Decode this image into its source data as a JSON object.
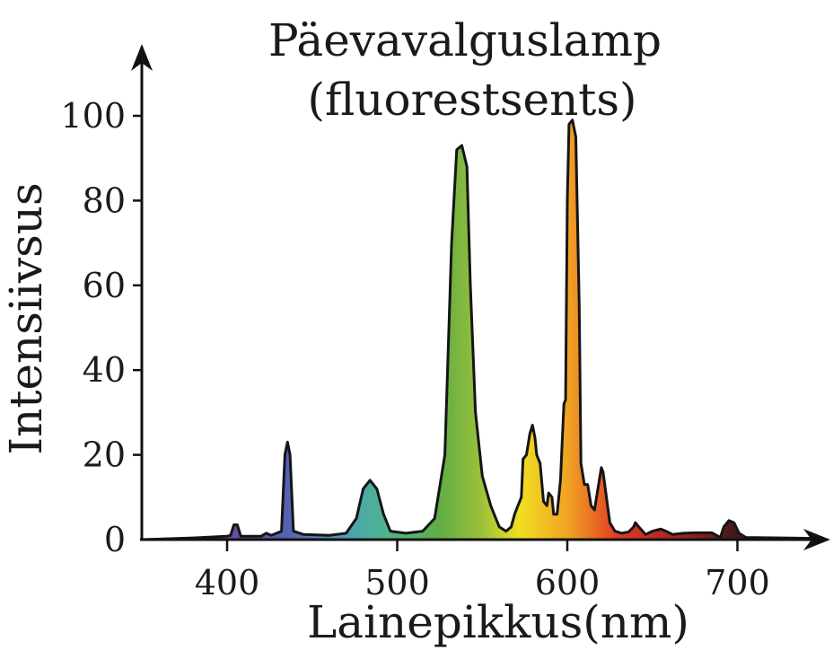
{
  "chart_data": {
    "type": "area",
    "title": [
      "Päevavalguslamp",
      "(fluorestsents)"
    ],
    "xlabel": "Lainepikkus(nm)",
    "ylabel": "Intensiivsus",
    "xlim": [
      350,
      752
    ],
    "ylim": [
      0,
      110
    ],
    "x_ticks": [
      400,
      500,
      600,
      700
    ],
    "y_ticks": [
      0,
      20,
      40,
      60,
      80,
      100
    ],
    "grid": false,
    "legend": "none",
    "fill": "visible-spectrum gradient",
    "spectrum_colors": [
      {
        "nm": 400,
        "color": "#6a4a9c"
      },
      {
        "nm": 435,
        "color": "#5660b2"
      },
      {
        "nm": 470,
        "color": "#4aa2b4"
      },
      {
        "nm": 495,
        "color": "#4fb68a"
      },
      {
        "nm": 525,
        "color": "#62ac44"
      },
      {
        "nm": 550,
        "color": "#9cc23a"
      },
      {
        "nm": 572,
        "color": "#f0df22"
      },
      {
        "nm": 600,
        "color": "#f0a424"
      },
      {
        "nm": 630,
        "color": "#e23a22"
      },
      {
        "nm": 665,
        "color": "#a82222"
      },
      {
        "nm": 700,
        "color": "#3c1a1a"
      }
    ],
    "points": [
      [
        350,
        0
      ],
      [
        380,
        0.4
      ],
      [
        400,
        0.8
      ],
      [
        402,
        1
      ],
      [
        404,
        3.5
      ],
      [
        406,
        3.5
      ],
      [
        408,
        0.8
      ],
      [
        420,
        0.8
      ],
      [
        423,
        1.5
      ],
      [
        426,
        1
      ],
      [
        432,
        2
      ],
      [
        434,
        20
      ],
      [
        435.5,
        23
      ],
      [
        437,
        20
      ],
      [
        439,
        2
      ],
      [
        445,
        1.2
      ],
      [
        460,
        1
      ],
      [
        470,
        1.5
      ],
      [
        476,
        5
      ],
      [
        480,
        12
      ],
      [
        484,
        14
      ],
      [
        488,
        12
      ],
      [
        492,
        6
      ],
      [
        496,
        2
      ],
      [
        505,
        1.5
      ],
      [
        515,
        2
      ],
      [
        522,
        5
      ],
      [
        528,
        20
      ],
      [
        532,
        70
      ],
      [
        535,
        92
      ],
      [
        538,
        93
      ],
      [
        541,
        88
      ],
      [
        543,
        60
      ],
      [
        546,
        30
      ],
      [
        550,
        15
      ],
      [
        555,
        8
      ],
      [
        560,
        3
      ],
      [
        564,
        2
      ],
      [
        567,
        3
      ],
      [
        569,
        6
      ],
      [
        571,
        8
      ],
      [
        573,
        10
      ],
      [
        574,
        19
      ],
      [
        576,
        20
      ],
      [
        578,
        25
      ],
      [
        579.5,
        27
      ],
      [
        581,
        24
      ],
      [
        582,
        20
      ],
      [
        584,
        18
      ],
      [
        586,
        9
      ],
      [
        588,
        8
      ],
      [
        589,
        11
      ],
      [
        591,
        10
      ],
      [
        592,
        6
      ],
      [
        594,
        6
      ],
      [
        596,
        14
      ],
      [
        598,
        32
      ],
      [
        599,
        33
      ],
      [
        600,
        80
      ],
      [
        601,
        98
      ],
      [
        603,
        99
      ],
      [
        605,
        95
      ],
      [
        607,
        55
      ],
      [
        608,
        18
      ],
      [
        610,
        13
      ],
      [
        612,
        13
      ],
      [
        614,
        8
      ],
      [
        616,
        7
      ],
      [
        618,
        12
      ],
      [
        620,
        17
      ],
      [
        621,
        16
      ],
      [
        623,
        10
      ],
      [
        625,
        4
      ],
      [
        628,
        2
      ],
      [
        632,
        1.5
      ],
      [
        636,
        1.8
      ],
      [
        639,
        3
      ],
      [
        640,
        4
      ],
      [
        642,
        3
      ],
      [
        646,
        1.2
      ],
      [
        650,
        2
      ],
      [
        655,
        2.5
      ],
      [
        658,
        2
      ],
      [
        662,
        1.2
      ],
      [
        668,
        1.5
      ],
      [
        675,
        1.6
      ],
      [
        685,
        1.6
      ],
      [
        690,
        0.5
      ],
      [
        692,
        3
      ],
      [
        695,
        4.5
      ],
      [
        698,
        4
      ],
      [
        701,
        1.5
      ],
      [
        705,
        0.5
      ],
      [
        745,
        0.3
      ]
    ]
  }
}
